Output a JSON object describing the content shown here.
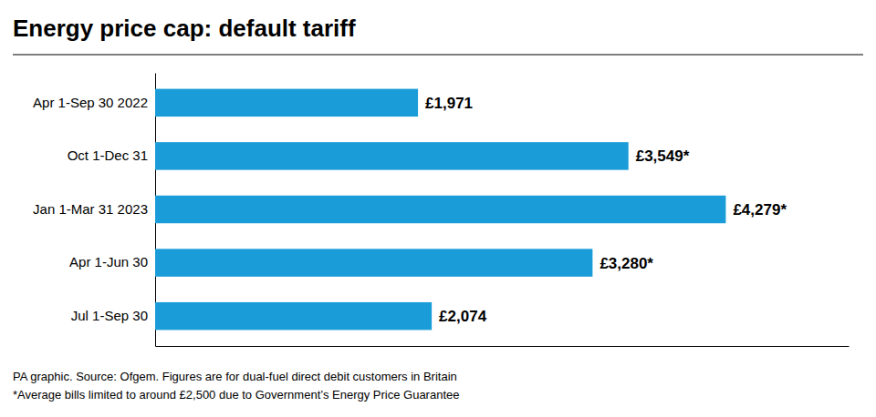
{
  "chart_data": {
    "type": "bar",
    "orientation": "horizontal",
    "title": "Energy price cap: default tariff",
    "categories": [
      "Apr 1-Sep 30 2022",
      "Oct 1-Dec 31",
      "Jan 1-Mar 31 2023",
      "Apr 1-Jun 30",
      "Jul 1-Sep 30"
    ],
    "values": [
      1971,
      3549,
      4279,
      3280,
      2074
    ],
    "value_labels": [
      "£1,971",
      "£3,549*",
      "£4,279*",
      "£3,280*",
      "£2,074"
    ],
    "data_labels": true,
    "color": "#1a9cd8",
    "xlim": [
      0,
      5200
    ],
    "tick_labels": "y",
    "grid": false,
    "annotations": [
      "PA graphic. Source: Ofgem. Figures are for dual-fuel direct debit customers in Britain",
      "*Average bills limited to around £2,500 due to Government’s Energy Price Guarantee"
    ]
  }
}
